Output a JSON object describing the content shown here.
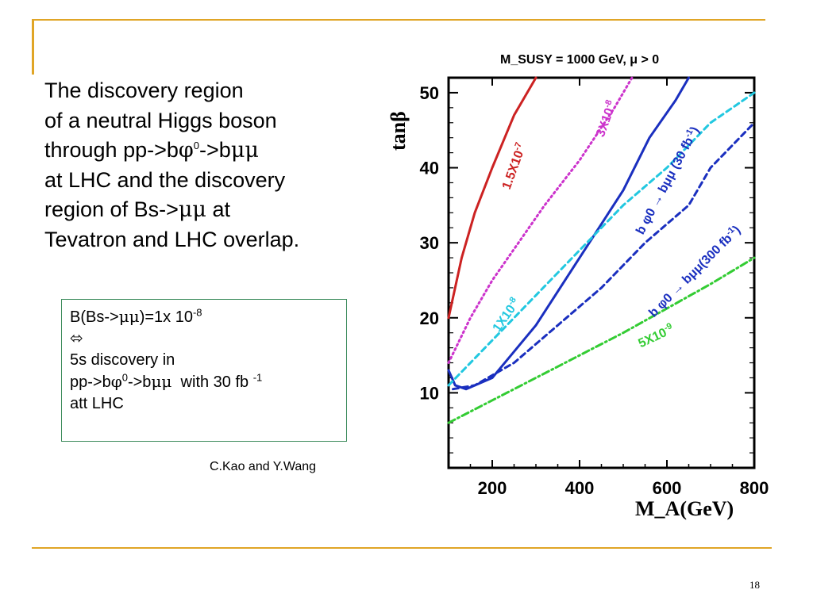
{
  "slide": {
    "page_number": "18",
    "main_lines": {
      "l1": "The discovery region",
      "l2": "of a neutral Higgs boson",
      "l3_a": "through pp->b",
      "l3_phi": "φ",
      "l3_sup": "0",
      "l3_b": "->b",
      "l3_mumu": "μμ",
      "l4": "at LHC and the discovery",
      "l5_a": "region of Bs->",
      "l5_mumu": "μμ",
      "l5_b": " at",
      "l6": "Tevatron and LHC overlap."
    },
    "note": {
      "l1_a": "B(Bs->",
      "l1_mumu": "μμ",
      "l1_b": ")=1x 10",
      "l1_sup": "-8",
      "l2": "⬄",
      "l3": "5s discovery in",
      "l4_a": "pp->b",
      "l4_phi": "φ",
      "l4_sup": "0",
      "l4_b": "->b",
      "l4_mumu": "μμ",
      "l4_c": "  with 30 fb ",
      "l4_sup2": "-1",
      "l5": "att LHC"
    },
    "credit": "C.Kao and Y.Wang"
  },
  "chart_data": {
    "type": "line",
    "title": "M_SUSY = 1000 GeV, μ > 0",
    "xlabel": "M_A(GeV)",
    "ylabel": "tanβ",
    "xlim": [
      100,
      800
    ],
    "ylim": [
      0,
      52
    ],
    "xticks": [
      200,
      400,
      600,
      800
    ],
    "yticks": [
      10,
      20,
      30,
      40,
      50
    ],
    "series": [
      {
        "name": "1.5X10^-7",
        "color": "#cc2222",
        "style": "solid",
        "x": [
          100,
          130,
          160,
          200,
          250,
          300
        ],
        "y": [
          20,
          28,
          34,
          40,
          47,
          52
        ]
      },
      {
        "name": "3X10^-8",
        "color": "#cc33cc",
        "style": "dotted",
        "x": [
          100,
          150,
          200,
          260,
          320,
          400,
          480,
          520
        ],
        "y": [
          14,
          20,
          25,
          30,
          35,
          41,
          48,
          52
        ]
      },
      {
        "name": "b φ0 -> bμμ (30 fb^-1)",
        "color": "#1a2fbf",
        "style": "solid",
        "x": [
          100,
          115,
          140,
          200,
          300,
          400,
          500,
          560,
          620,
          650
        ],
        "y": [
          13,
          11,
          10.5,
          12,
          19,
          28,
          37,
          44,
          49,
          52
        ]
      },
      {
        "name": "1X10^-8",
        "color": "#22c8e0",
        "style": "dashed",
        "x": [
          100,
          200,
          300,
          400,
          500,
          600,
          700,
          800
        ],
        "y": [
          11,
          17,
          23,
          29,
          35,
          40,
          46,
          50
        ]
      },
      {
        "name": "b φ0 -> bμμ(300 fb^-1)",
        "color": "#1a2fbf",
        "style": "dashed",
        "x": [
          110,
          160,
          250,
          350,
          450,
          550,
          650,
          700,
          750,
          800
        ],
        "y": [
          10.5,
          11,
          14,
          19,
          24,
          30,
          35,
          40,
          43,
          46
        ]
      },
      {
        "name": "5X10^-9",
        "color": "#33cc33",
        "style": "dashdot",
        "x": [
          100,
          300,
          500,
          700,
          800
        ],
        "y": [
          6,
          12,
          18,
          24.5,
          28
        ]
      }
    ],
    "labels": [
      {
        "text": "1.5X10",
        "sup": "-7",
        "color": "#cc2222",
        "x": 240,
        "y": 37,
        "rotate": -70
      },
      {
        "text": "3X10",
        "sup": "-8",
        "color": "#cc33cc",
        "x": 455,
        "y": 44,
        "rotate": -70
      },
      {
        "text": "b φ0 → bμμ (30 fb",
        "sup": "-1",
        "tail": ")",
        "color": "#1a2fbf",
        "x": 545,
        "y": 31,
        "rotate": -62
      },
      {
        "text": "1X10",
        "sup": "-8",
        "color": "#22c8e0",
        "x": 215,
        "y": 18,
        "rotate": -55
      },
      {
        "text": "b φ0 → bμμ(300 fb",
        "sup": "-1",
        "tail": ")",
        "color": "#1a2fbf",
        "x": 570,
        "y": 20,
        "rotate": -45
      },
      {
        "text": "5X10",
        "sup": "-9",
        "color": "#33cc33",
        "x": 540,
        "y": 16,
        "rotate": -25
      }
    ]
  }
}
